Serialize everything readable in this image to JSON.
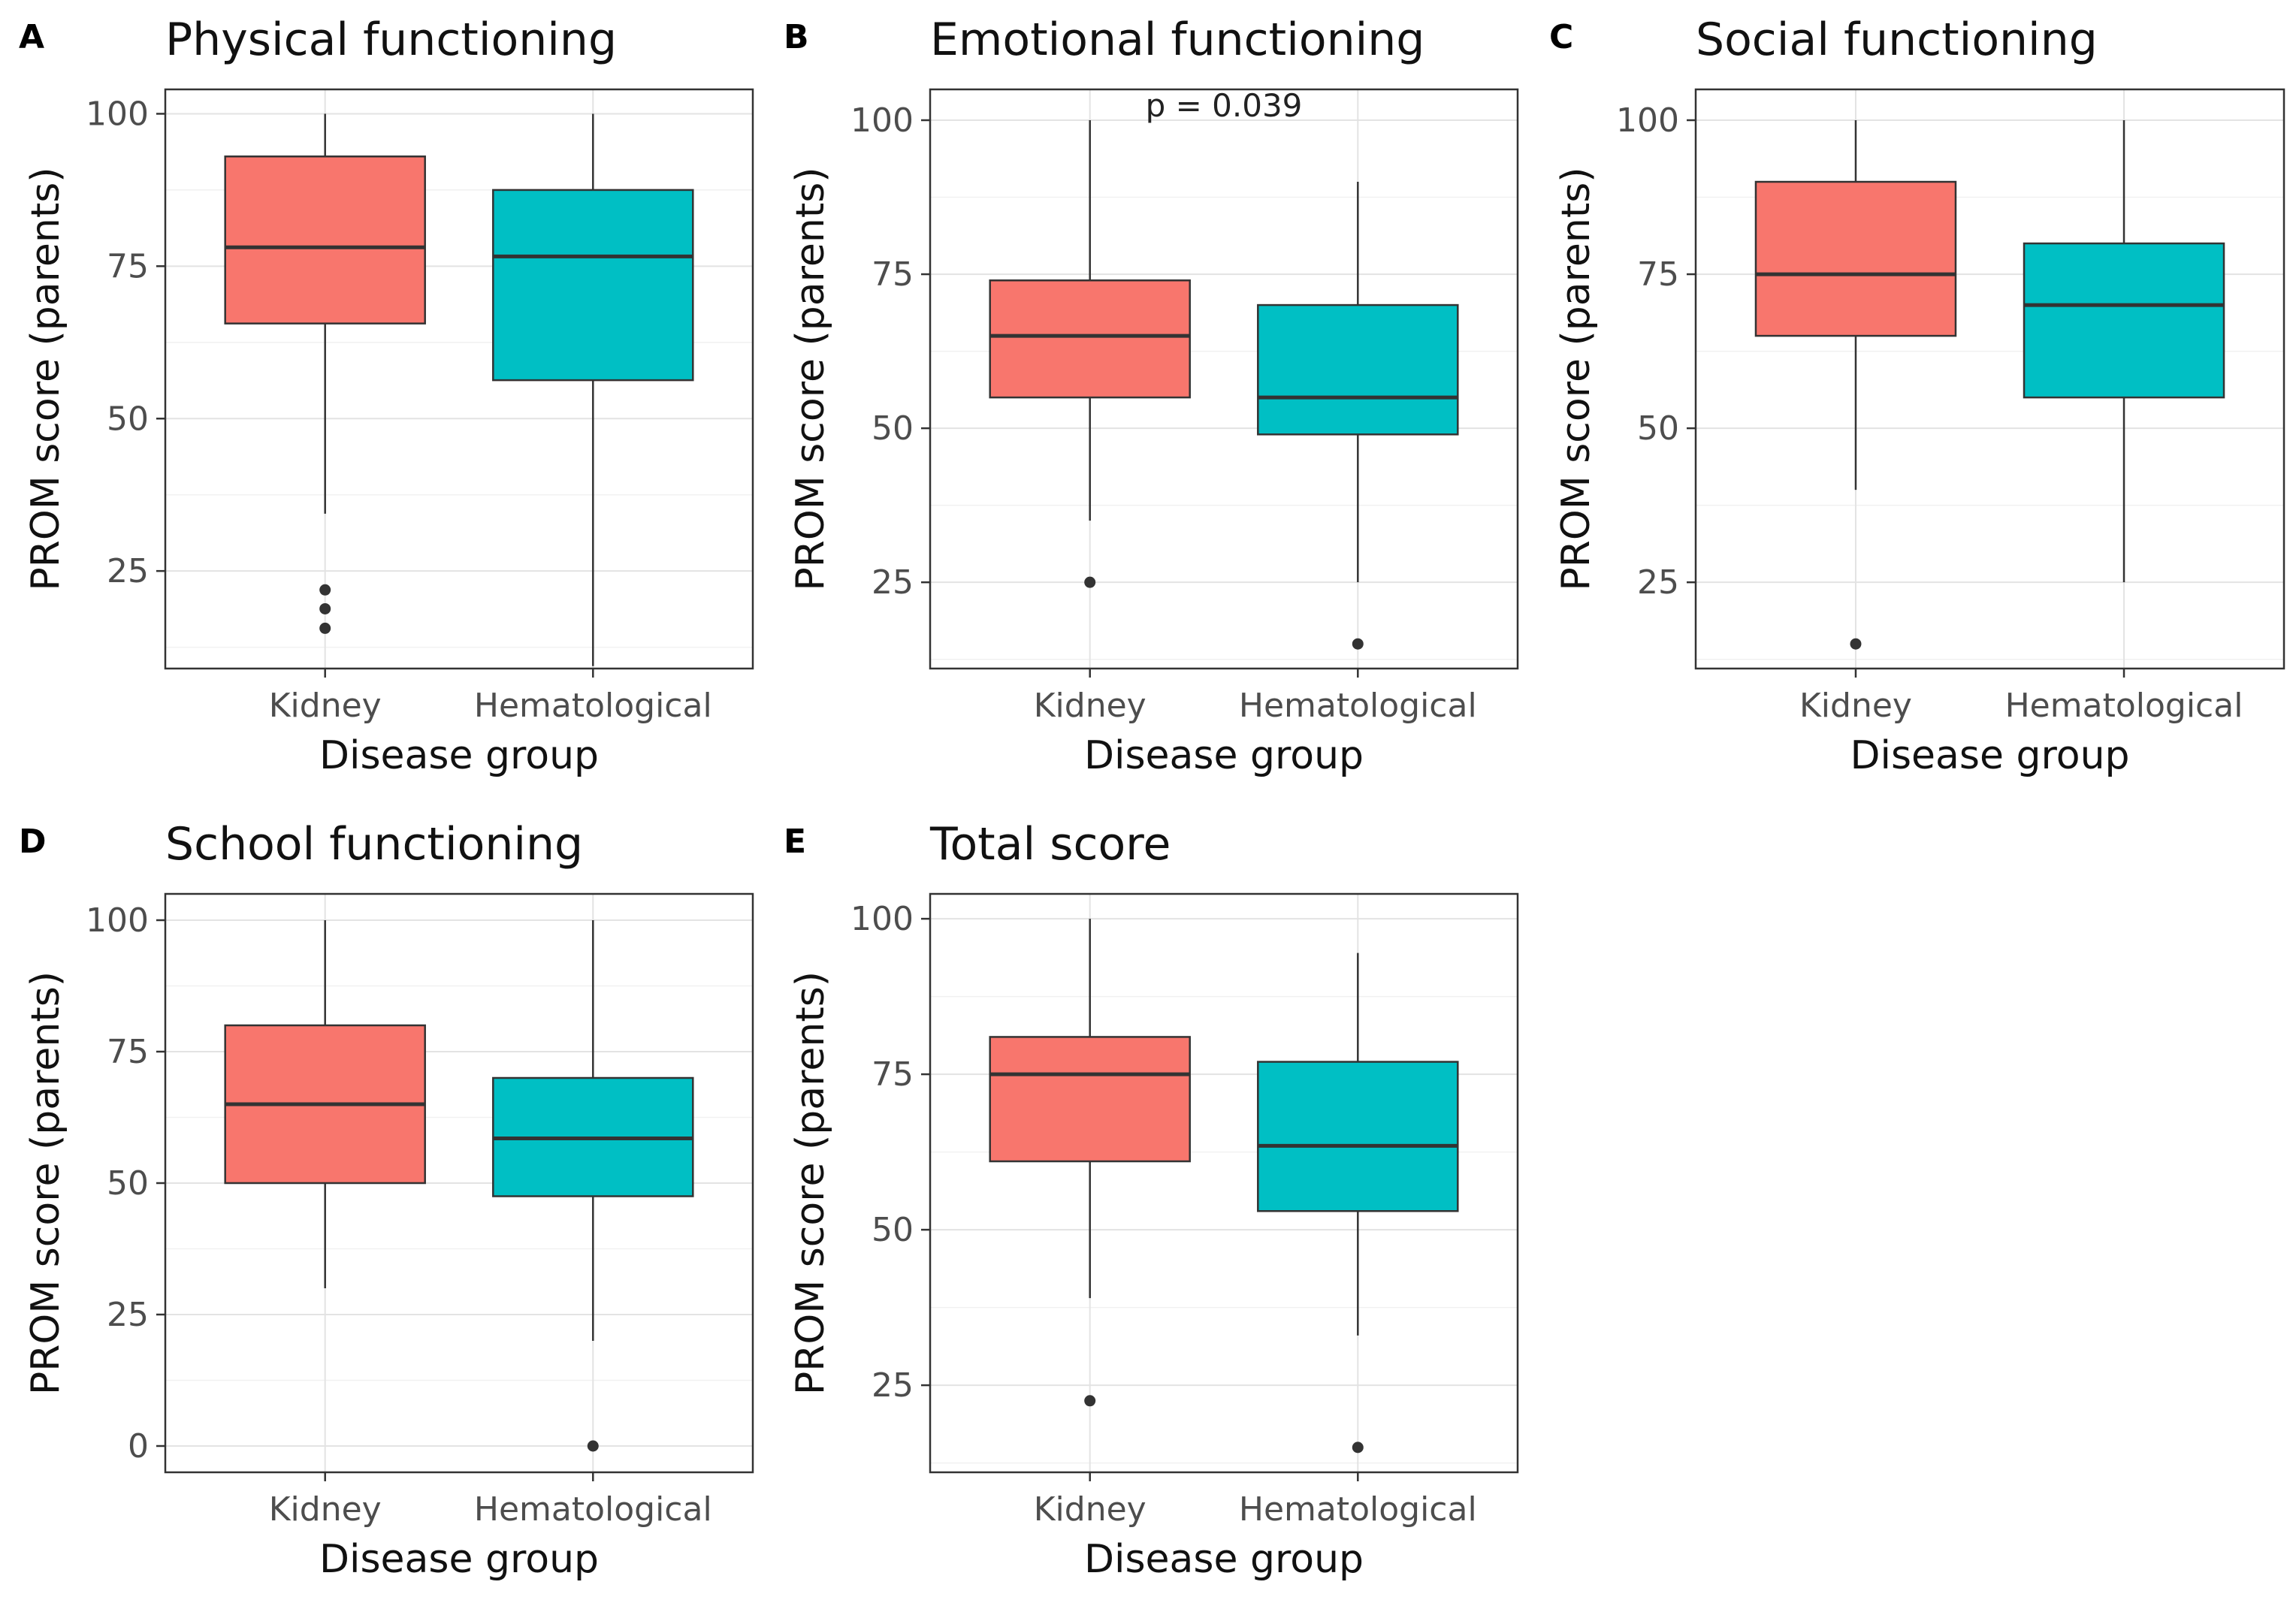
{
  "colors": {
    "kidney": "#F8766D",
    "hematological": "#00BFC4"
  },
  "chart_data": [
    {
      "panel": "A",
      "type": "boxplot",
      "title": "Physical functioning",
      "xlabel": "Disease group",
      "ylabel": "PROM score (parents)",
      "ylim": [
        9,
        104
      ],
      "yticks": [
        25,
        50,
        75,
        100
      ],
      "categories": [
        "Kidney",
        "Hematological"
      ],
      "boxes": [
        {
          "category": "Kidney",
          "whisker_low": 34.4,
          "q1": 65.6,
          "median": 78.1,
          "q3": 93.0,
          "whisker_high": 100,
          "outliers": [
            21.9,
            18.8,
            15.6
          ]
        },
        {
          "category": "Hematological",
          "whisker_low": 9.4,
          "q1": 56.3,
          "median": 76.6,
          "q3": 87.5,
          "whisker_high": 100,
          "outliers": []
        }
      ],
      "annotation": ""
    },
    {
      "panel": "B",
      "type": "boxplot",
      "title": "Emotional functioning",
      "xlabel": "Disease group",
      "ylabel": "PROM score (parents)",
      "ylim": [
        11,
        105
      ],
      "yticks": [
        25,
        50,
        75,
        100
      ],
      "categories": [
        "Kidney",
        "Hematological"
      ],
      "boxes": [
        {
          "category": "Kidney",
          "whisker_low": 35,
          "q1": 55,
          "median": 65,
          "q3": 74,
          "whisker_high": 100,
          "outliers": [
            25
          ]
        },
        {
          "category": "Hematological",
          "whisker_low": 25,
          "q1": 49,
          "median": 55,
          "q3": 70,
          "whisker_high": 90,
          "outliers": [
            15
          ]
        }
      ],
      "annotation": "p = 0.039"
    },
    {
      "panel": "C",
      "type": "boxplot",
      "title": "Social functioning",
      "xlabel": "Disease group",
      "ylabel": "PROM score (parents)",
      "ylim": [
        11,
        105
      ],
      "yticks": [
        25,
        50,
        75,
        100
      ],
      "categories": [
        "Kidney",
        "Hematological"
      ],
      "boxes": [
        {
          "category": "Kidney",
          "whisker_low": 40,
          "q1": 65,
          "median": 75,
          "q3": 90,
          "whisker_high": 100,
          "outliers": [
            15
          ]
        },
        {
          "category": "Hematological",
          "whisker_low": 25,
          "q1": 55,
          "median": 70,
          "q3": 80,
          "whisker_high": 100,
          "outliers": []
        }
      ],
      "annotation": ""
    },
    {
      "panel": "D",
      "type": "boxplot",
      "title": "School functioning",
      "xlabel": "Disease group",
      "ylabel": "PROM score (parents)",
      "ylim": [
        -5,
        105
      ],
      "yticks": [
        0,
        25,
        50,
        75,
        100
      ],
      "categories": [
        "Kidney",
        "Hematological"
      ],
      "boxes": [
        {
          "category": "Kidney",
          "whisker_low": 30,
          "q1": 50,
          "median": 65,
          "q3": 80,
          "whisker_high": 100,
          "outliers": []
        },
        {
          "category": "Hematological",
          "whisker_low": 20,
          "q1": 47.5,
          "median": 58.5,
          "q3": 70,
          "whisker_high": 100,
          "outliers": [
            0
          ]
        }
      ],
      "annotation": ""
    },
    {
      "panel": "E",
      "type": "boxplot",
      "title": "Total score",
      "xlabel": "Disease group",
      "ylabel": "PROM score (parents)",
      "ylim": [
        11,
        104
      ],
      "yticks": [
        25,
        50,
        75,
        100
      ],
      "categories": [
        "Kidney",
        "Hematological"
      ],
      "boxes": [
        {
          "category": "Kidney",
          "whisker_low": 39,
          "q1": 61,
          "median": 75,
          "q3": 81,
          "whisker_high": 100,
          "outliers": [
            22.5
          ]
        },
        {
          "category": "Hematological",
          "whisker_low": 33,
          "q1": 53,
          "median": 63.5,
          "q3": 77,
          "whisker_high": 94.5,
          "outliers": [
            15
          ]
        }
      ],
      "annotation": ""
    }
  ]
}
